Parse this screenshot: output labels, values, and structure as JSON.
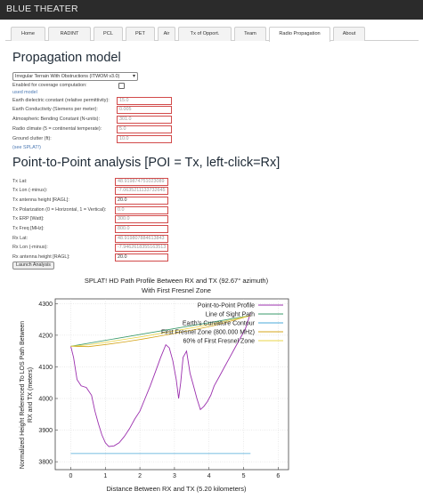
{
  "app": {
    "title": "BLUE THEATER"
  },
  "tabs": [
    {
      "label": "Home",
      "active": false
    },
    {
      "label": "RADINT",
      "active": false
    },
    {
      "label": "PCL",
      "active": false
    },
    {
      "label": "PET",
      "active": false
    },
    {
      "label": "Air",
      "active": false
    },
    {
      "label": "Tx of Opport.",
      "active": false
    },
    {
      "label": "Team",
      "active": false
    },
    {
      "label": "Radio Propagation",
      "active": true
    },
    {
      "label": "About",
      "active": false
    }
  ],
  "propagation": {
    "title": "Propagation model",
    "model_selected": "Irregular Terrain With Obstructions (ITWOM v3.0)",
    "coverage_label": "Enabled for coverage computation:",
    "used_model_label": "used model",
    "fields": [
      {
        "label": "Earth dielectric constant (relative permittivity):",
        "value": "15.0"
      },
      {
        "label": "Earth Conductivity (Siemens per meter):",
        "value": "0.005"
      },
      {
        "label": "Atmospheric Bending Constant (N-units):",
        "value": "301.0"
      },
      {
        "label": "Radio climate (5 = continental temperate):",
        "value": "5.0"
      },
      {
        "label": "Ground clutter (ft):",
        "value": "10.0"
      }
    ],
    "link": "(see SPLAT!)"
  },
  "p2p": {
    "title": "Point-to-Point analysis [POI = Tx, left-click=Rx]",
    "fields": [
      {
        "label": "Tx Lat:",
        "value": "48.919874751023089"
      },
      {
        "label": "Tx Lon (-minus):",
        "value": "-7.0635211133732645"
      },
      {
        "label": "Tx antenna height [RAGL]:",
        "value": "20.0"
      },
      {
        "label": "Tx Polarization (0 = Horizontal, 1 = Vertical):",
        "value": "0.0"
      },
      {
        "label": "Tx ERP [Watt]:",
        "value": "300.0"
      },
      {
        "label": "Tx Freq [MHz]:",
        "value": "800.0"
      },
      {
        "label": "Rx Lat:",
        "value": "48.919807884613843"
      },
      {
        "label": "Rx Lon (-minus):",
        "value": "-7.9462618355163513"
      },
      {
        "label": "Rx antenna height [RAGL]:",
        "value": "20.0"
      }
    ],
    "button": "Launch Analysis"
  },
  "chart_data": {
    "type": "line",
    "title": "SPLAT! HD Path Profile Between RX  and TX  (92.67° azimuth)",
    "subtitle": "With First Fresnel Zone",
    "xlabel": "Distance Between RX  and TX  (5.20 kilometers)",
    "ylabel_line1": "Normalized Height Referenced To LOS Path Between",
    "ylabel_line2": "RX  and TX  (meters)",
    "xlim": [
      -0.45,
      6.3
    ],
    "ylim": [
      3775,
      4315
    ],
    "x_ticks": [
      0,
      1,
      2,
      3,
      4,
      5,
      6
    ],
    "y_ticks": [
      3800,
      3900,
      4000,
      4100,
      4200,
      4300
    ],
    "legend_position": "top-right",
    "series": [
      {
        "name": "Point-to-Point Profile",
        "color": "#9b2fae",
        "x": [
          0,
          0.08,
          0.18,
          0.3,
          0.45,
          0.6,
          0.7,
          0.8,
          0.9,
          1.0,
          1.1,
          1.25,
          1.4,
          1.55,
          1.7,
          1.85,
          2.0,
          2.15,
          2.3,
          2.45,
          2.6,
          2.75,
          2.85,
          2.95,
          3.05,
          3.12,
          3.18,
          3.25,
          3.35,
          3.45,
          3.55,
          3.65,
          3.75,
          3.85,
          3.95,
          4.05,
          4.15,
          4.3,
          4.45,
          4.6,
          4.75,
          4.9,
          5.05,
          5.2
        ],
        "y": [
          4165,
          4130,
          4060,
          4040,
          4035,
          4010,
          3960,
          3920,
          3885,
          3860,
          3848,
          3850,
          3860,
          3880,
          3905,
          3935,
          3960,
          4000,
          4040,
          4085,
          4130,
          4170,
          4160,
          4120,
          4060,
          4000,
          4050,
          4130,
          4150,
          4080,
          4040,
          4000,
          3965,
          3975,
          3990,
          4010,
          4040,
          4070,
          4100,
          4130,
          4160,
          4190,
          4220,
          4270
        ]
      },
      {
        "name": "Line of Sight Path",
        "color": "#3a9a6b",
        "x": [
          0,
          5.2
        ],
        "y": [
          4165,
          4262
        ]
      },
      {
        "name": "Earth's Curvature Contour",
        "color": "#4aa8d8",
        "x": [
          0,
          5.2
        ],
        "y": [
          3826,
          3826
        ]
      },
      {
        "name": "First Fresnel Zone (800.000 MHz)",
        "color": "#d4a418",
        "x": [
          0,
          0.52,
          1.04,
          1.56,
          2.08,
          2.6,
          3.12,
          3.64,
          4.16,
          4.68,
          5.2
        ],
        "y": [
          4165,
          4164,
          4171,
          4179,
          4188,
          4198,
          4208,
          4219,
          4231,
          4246,
          4262
        ]
      },
      {
        "name": "60% of First Fresnel Zone",
        "color": "#e8d44a",
        "x": [
          0,
          0.52,
          1.04,
          1.56,
          2.08,
          2.6,
          3.12,
          3.64,
          4.16,
          4.68,
          5.2
        ],
        "y": [
          4165,
          4170,
          4178,
          4187,
          4196,
          4206,
          4216,
          4226,
          4237,
          4250,
          4262
        ]
      }
    ]
  }
}
